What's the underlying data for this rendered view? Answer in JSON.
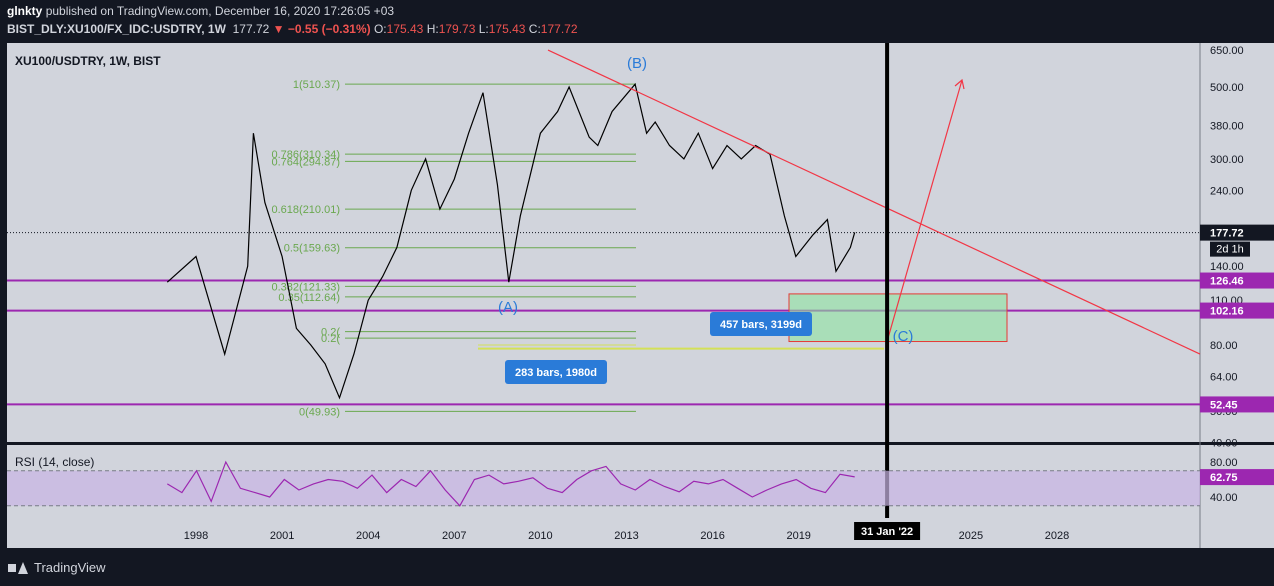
{
  "header": {
    "author": "glnkty",
    "published_text": "published on TradingView.com, December 16, 2020 17:26:05 +03",
    "symbol_line": "BIST_DLY:XU100/FX_IDC:USDTRY, 1W",
    "last_value": "177.72",
    "change": "−0.55 (−0.31%)",
    "o_label": "O:",
    "o_value": "175.43",
    "h_label": "H:",
    "h_value": "179.73",
    "l_label": "L:",
    "l_value": "175.43",
    "c_label": "C:",
    "c_value": "177.72"
  },
  "chart_title": "XU100/USDTRY, 1W, BIST",
  "rsi_title": "RSI (14, close)",
  "footer": {
    "brand": "TradingView"
  },
  "colors": {
    "background": "#d1d4dc",
    "price_line": "#000000",
    "fib": "#6aa84f",
    "horizontal": "#9c27b0",
    "trendline": "#f23645",
    "rsi_line": "#9c27b0",
    "rsi_band": "#c9b5e4",
    "annotation": "#2a7bd8"
  },
  "chart_data": [
    {
      "type": "line",
      "title": "XU100/USDTRY, 1W, BIST",
      "y_scale": "log",
      "y_ticks": [
        "650.00",
        "500.00",
        "380.00",
        "300.00",
        "240.00",
        "140.00",
        "110.00",
        "80.00",
        "64.00",
        "50.00",
        "40.00"
      ],
      "x_ticks": [
        "1998",
        "2001",
        "2004",
        "2007",
        "2010",
        "2013",
        "2016",
        "2019",
        "2022",
        "2025",
        "2028"
      ],
      "last_price_label": "177.72",
      "timeframe_badge": "2d 1h",
      "price_levels": [
        "126.46",
        "102.16",
        "52.45"
      ],
      "fibonacci": [
        {
          "label": "1(510.37)",
          "value": 510.37
        },
        {
          "label": "0.786(310.34)",
          "value": 310.34
        },
        {
          "label": "0.764(294.87)",
          "value": 294.87
        },
        {
          "label": "0.618(210.01)",
          "value": 210.01
        },
        {
          "label": "0.5(159.63)",
          "value": 159.63
        },
        {
          "label": "0.382(121.33)",
          "value": 121.33
        },
        {
          "label": "0.35(112.64)",
          "value": 112.64
        },
        {
          "label": "0.2(",
          "value": 88
        },
        {
          "label": "0.2(",
          "value": 84
        },
        {
          "label": "0(49.93)",
          "value": 49.93
        }
      ],
      "wave_labels": [
        "(B)",
        "(A)",
        "(C)"
      ],
      "measure_labels": [
        "457 bars, 3199d",
        "283 bars, 1980d"
      ],
      "date_marker": "31 Jan '22",
      "series": [
        {
          "x": [
            "1997",
            "1998",
            "1999",
            "1999.8",
            "2000",
            "2000.4",
            "2001",
            "2001.5",
            "2002",
            "2002.5",
            "2003",
            "2003.5",
            "2004",
            "2004.5",
            "2005",
            "2005.5",
            "2006",
            "2006.5",
            "2007",
            "2007.5",
            "2008",
            "2008.5",
            "2008.9",
            "2009.3",
            "2010",
            "2010.6",
            "2011",
            "2011.7",
            "2012",
            "2012.5",
            "2013.3",
            "2013.7",
            "2014",
            "2014.5",
            "2015",
            "2015.5",
            "2016",
            "2016.5",
            "2017",
            "2017.5",
            "2018",
            "2018.5",
            "2018.9",
            "2019.5",
            "2020",
            "2020.3",
            "2020.8",
            "2020.95"
          ],
          "values": [
            125,
            150,
            75,
            140,
            360,
            220,
            150,
            90,
            80,
            70,
            55,
            75,
            110,
            130,
            160,
            240,
            300,
            210,
            260,
            360,
            480,
            250,
            125,
            200,
            360,
            420,
            500,
            350,
            330,
            420,
            510,
            360,
            390,
            330,
            300,
            360,
            280,
            330,
            300,
            330,
            310,
            200,
            150,
            175,
            195,
            135,
            160,
            178
          ]
        }
      ]
    },
    {
      "type": "line",
      "title": "RSI (14, close)",
      "y_ticks": [
        "80.00",
        "40.00"
      ],
      "last_value_label": "62.75",
      "band": [
        30,
        70
      ],
      "series": [
        {
          "values": [
            55,
            45,
            70,
            35,
            80,
            50,
            45,
            40,
            60,
            48,
            55,
            60,
            58,
            50,
            65,
            45,
            60,
            52,
            70,
            48,
            30,
            60,
            65,
            55,
            58,
            62,
            50,
            45,
            60,
            70,
            75,
            55,
            48,
            60,
            52,
            46,
            58,
            55,
            60,
            50,
            40,
            48,
            55,
            60,
            50,
            45,
            66,
            63
          ]
        }
      ]
    }
  ]
}
